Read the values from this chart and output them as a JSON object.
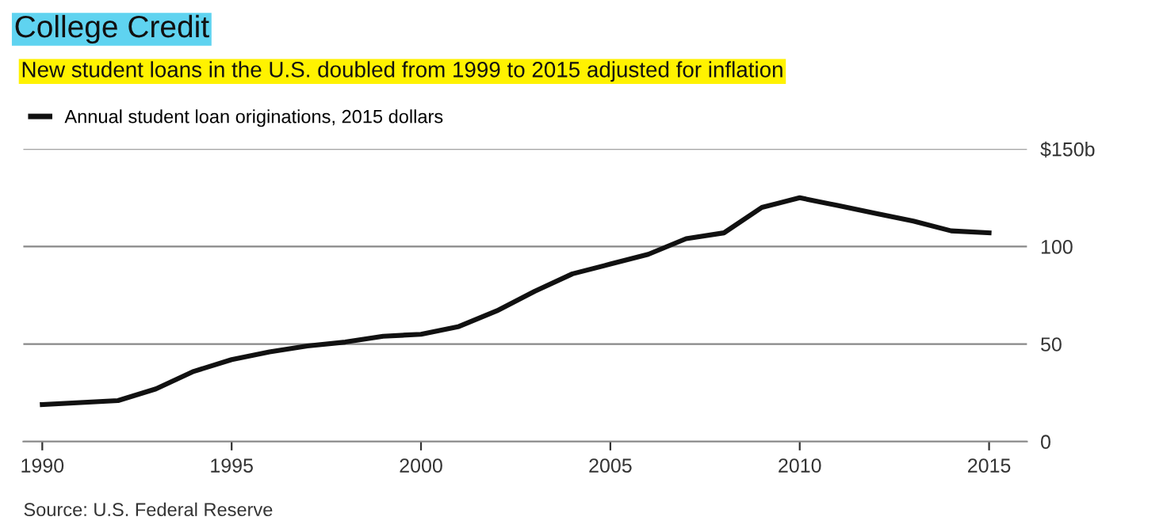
{
  "chart_data": {
    "type": "line",
    "title": "College Credit",
    "subtitle": "New student loans in the U.S. doubled from 1999 to 2015 adjusted for inflation",
    "series": [
      {
        "name": "Annual student loan originations, 2015 dollars",
        "color": "#111111",
        "x": [
          1990,
          1992,
          1993,
          1994,
          1995,
          1996,
          1997,
          1998,
          1999,
          2000,
          2001,
          2002,
          2003,
          2004,
          2005,
          2006,
          2007,
          2008,
          2009,
          2010,
          2011,
          2012,
          2013,
          2014,
          2015
        ],
        "values": [
          19,
          21,
          27,
          36,
          42,
          46,
          49,
          51,
          54,
          55,
          59,
          67,
          77,
          86,
          91,
          96,
          104,
          107,
          120,
          125,
          121,
          117,
          113,
          108,
          107
        ]
      }
    ],
    "xlim": [
      1989.5,
      2016
    ],
    "xticks": [
      1990,
      1995,
      2000,
      2005,
      2010,
      2015
    ],
    "ylim": [
      0,
      150
    ],
    "yticks": [
      0,
      50,
      100,
      {
        "value": 150,
        "label": "$150b"
      }
    ],
    "grid": "y",
    "legend": "top left",
    "marker": "none",
    "line_style": "solid",
    "annotations": [
      "Source: U.S. Federal Reserve"
    ]
  }
}
